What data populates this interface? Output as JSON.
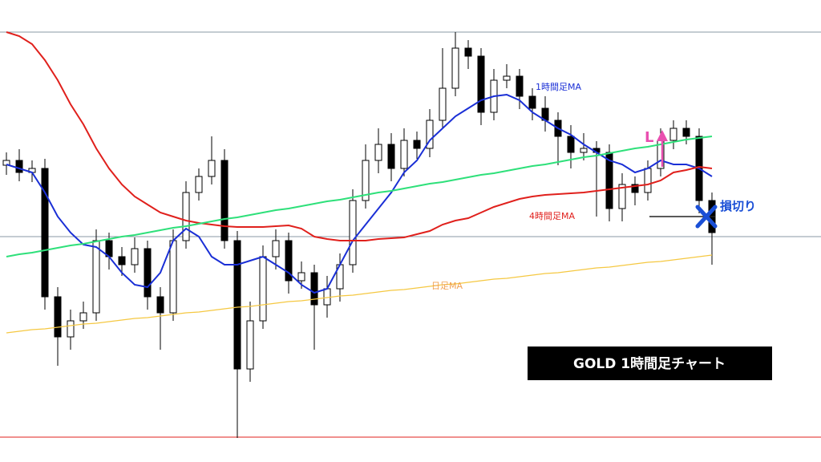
{
  "chart_data": {
    "type": "candlestick",
    "title": "GOLD  1時間足チャート",
    "ylim": [
      0,
      576
    ],
    "open": [
      370,
      376,
      361,
      366,
      206,
      156,
      176,
      186,
      276,
      256,
      246,
      266,
      206,
      186,
      276,
      336,
      356,
      376,
      276,
      116,
      176,
      256,
      276,
      226,
      236,
      196,
      216,
      246,
      326,
      376,
      396,
      366,
      401,
      391,
      426,
      466,
      516,
      506,
      436,
      476,
      481,
      456,
      441,
      426,
      406,
      386,
      391,
      386,
      316,
      346,
      336,
      366,
      401,
      416,
      406,
      326
    ],
    "high": [
      386,
      390,
      376,
      378,
      218,
      190,
      200,
      290,
      286,
      268,
      280,
      276,
      218,
      290,
      350,
      366,
      406,
      390,
      288,
      200,
      270,
      290,
      286,
      250,
      246,
      232,
      260,
      340,
      396,
      416,
      410,
      416,
      412,
      440,
      516,
      536,
      526,
      516,
      490,
      496,
      490,
      466,
      456,
      436,
      420,
      410,
      400,
      396,
      360,
      356,
      376,
      416,
      426,
      426,
      416,
      336
    ],
    "low": [
      358,
      350,
      349,
      190,
      120,
      140,
      166,
      176,
      240,
      232,
      236,
      190,
      140,
      176,
      266,
      326,
      346,
      266,
      30,
      100,
      166,
      240,
      210,
      216,
      140,
      180,
      200,
      236,
      316,
      360,
      350,
      356,
      378,
      380,
      416,
      456,
      490,
      420,
      426,
      466,
      440,
      426,
      412,
      370,
      366,
      376,
      306,
      300,
      300,
      320,
      326,
      356,
      390,
      396,
      310,
      246
    ],
    "close": [
      376,
      361,
      366,
      206,
      156,
      176,
      186,
      276,
      256,
      246,
      266,
      206,
      186,
      276,
      336,
      356,
      376,
      276,
      116,
      176,
      256,
      276,
      226,
      236,
      196,
      216,
      246,
      326,
      376,
      396,
      366,
      401,
      391,
      426,
      466,
      516,
      506,
      436,
      476,
      481,
      456,
      441,
      426,
      406,
      386,
      391,
      386,
      316,
      346,
      336,
      366,
      401,
      416,
      406,
      326,
      286
    ],
    "series": [
      {
        "name": "1時間足MA",
        "color": "#1a2fd6",
        "values": [
          371,
          366,
          361,
          336,
          306,
          286,
          271,
          268,
          256,
          236,
          221,
          218,
          236,
          276,
          291,
          281,
          256,
          246,
          246,
          251,
          256,
          246,
          236,
          221,
          211,
          216,
          246,
          276,
          296,
          316,
          336,
          361,
          376,
          401,
          416,
          431,
          441,
          451,
          456,
          458,
          451,
          436,
          426,
          416,
          408,
          396,
          386,
          376,
          371,
          361,
          366,
          376,
          371,
          371,
          366,
          356
        ]
      },
      {
        "name": "4時間足MA",
        "color": "#e0201c",
        "values": [
          536,
          531,
          521,
          501,
          476,
          446,
          421,
          391,
          366,
          346,
          331,
          321,
          311,
          306,
          301,
          298,
          296,
          294,
          293,
          293,
          293,
          294,
          295,
          291,
          281,
          278,
          276,
          276,
          276,
          278,
          279,
          280,
          284,
          288,
          296,
          301,
          304,
          311,
          318,
          323,
          328,
          331,
          333,
          334,
          335,
          336,
          338,
          340,
          342,
          344,
          346,
          351,
          361,
          364,
          368,
          366
        ]
      },
      {
        "color": "#2ee07a",
        "values": [
          256,
          259,
          261,
          264,
          267,
          270,
          272,
          275,
          278,
          281,
          283,
          286,
          289,
          292,
          294,
          297,
          300,
          303,
          305,
          308,
          311,
          314,
          316,
          319,
          322,
          325,
          327,
          330,
          333,
          336,
          338,
          341,
          344,
          347,
          349,
          352,
          355,
          358,
          360,
          363,
          366,
          369,
          371,
          374,
          377,
          380,
          382,
          385,
          388,
          391,
          393,
          396,
          399,
          402,
          404,
          406
        ]
      },
      {
        "name": "日足MA",
        "color": "#f5c842",
        "values": [
          161,
          163,
          165,
          166,
          168,
          170,
          172,
          173,
          175,
          177,
          179,
          180,
          182,
          184,
          186,
          187,
          189,
          191,
          193,
          194,
          196,
          198,
          200,
          201,
          203,
          205,
          207,
          208,
          210,
          212,
          214,
          215,
          217,
          219,
          221,
          222,
          224,
          226,
          228,
          229,
          231,
          233,
          235,
          236,
          238,
          240,
          242,
          243,
          245,
          247,
          249,
          250,
          252,
          254,
          256,
          258
        ]
      }
    ],
    "annotations": [
      "損切り",
      "L"
    ]
  }
}
